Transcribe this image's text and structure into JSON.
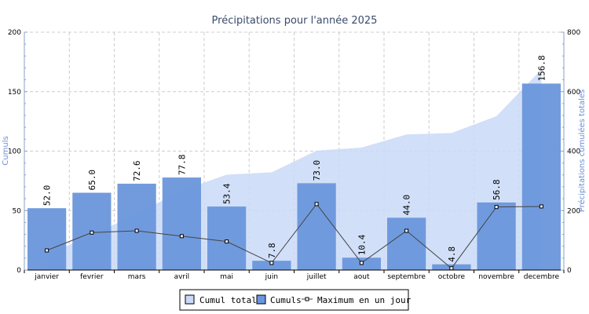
{
  "chart_data": {
    "type": "bar",
    "title": "Précipitations pour l'année 2025",
    "ylabel_left": "Cumuls",
    "ylabel_right": "Précipitations cumulées totales",
    "ylim_left": [
      0,
      200
    ],
    "yticks_left": [
      0,
      50,
      100,
      150,
      200
    ],
    "ylim_right": [
      0,
      800
    ],
    "yticks_right": [
      0,
      200,
      400,
      600,
      800
    ],
    "grid": true,
    "legend_position": "bottom-center",
    "categories": [
      "janvier",
      "fevrier",
      "mars",
      "avril",
      "mai",
      "juin",
      "juillet",
      "aout",
      "septembre",
      "octobre",
      "novembre",
      "decembre"
    ],
    "series": [
      {
        "name": "Cumul total",
        "type": "area",
        "axis": "right",
        "color": "#c9d9f7",
        "values": [
          52.0,
          117.0,
          189.6,
          267.4,
          320.8,
          328.6,
          401.6,
          412.0,
          456.0,
          460.8,
          517.6,
          674.4
        ]
      },
      {
        "name": "Cumuls",
        "type": "bar",
        "axis": "left",
        "color": "#6a96dc",
        "values": [
          52.0,
          65.0,
          72.6,
          77.8,
          53.4,
          7.8,
          73.0,
          10.4,
          44.0,
          4.8,
          56.8,
          156.8
        ],
        "labels": [
          "52.0",
          "65.0",
          "72.6",
          "77.8",
          "53.4",
          "7.8",
          "73.0",
          "10.4",
          "44.0",
          "4.8",
          "56.8",
          "156.8"
        ]
      },
      {
        "name": "Maximum en un jour",
        "type": "line",
        "axis": "left",
        "color": "#444444",
        "values": [
          16.5,
          31.5,
          33.0,
          28.5,
          24.0,
          6.0,
          55.5,
          6.0,
          33.0,
          1.5,
          53.0,
          53.5
        ]
      }
    ]
  }
}
